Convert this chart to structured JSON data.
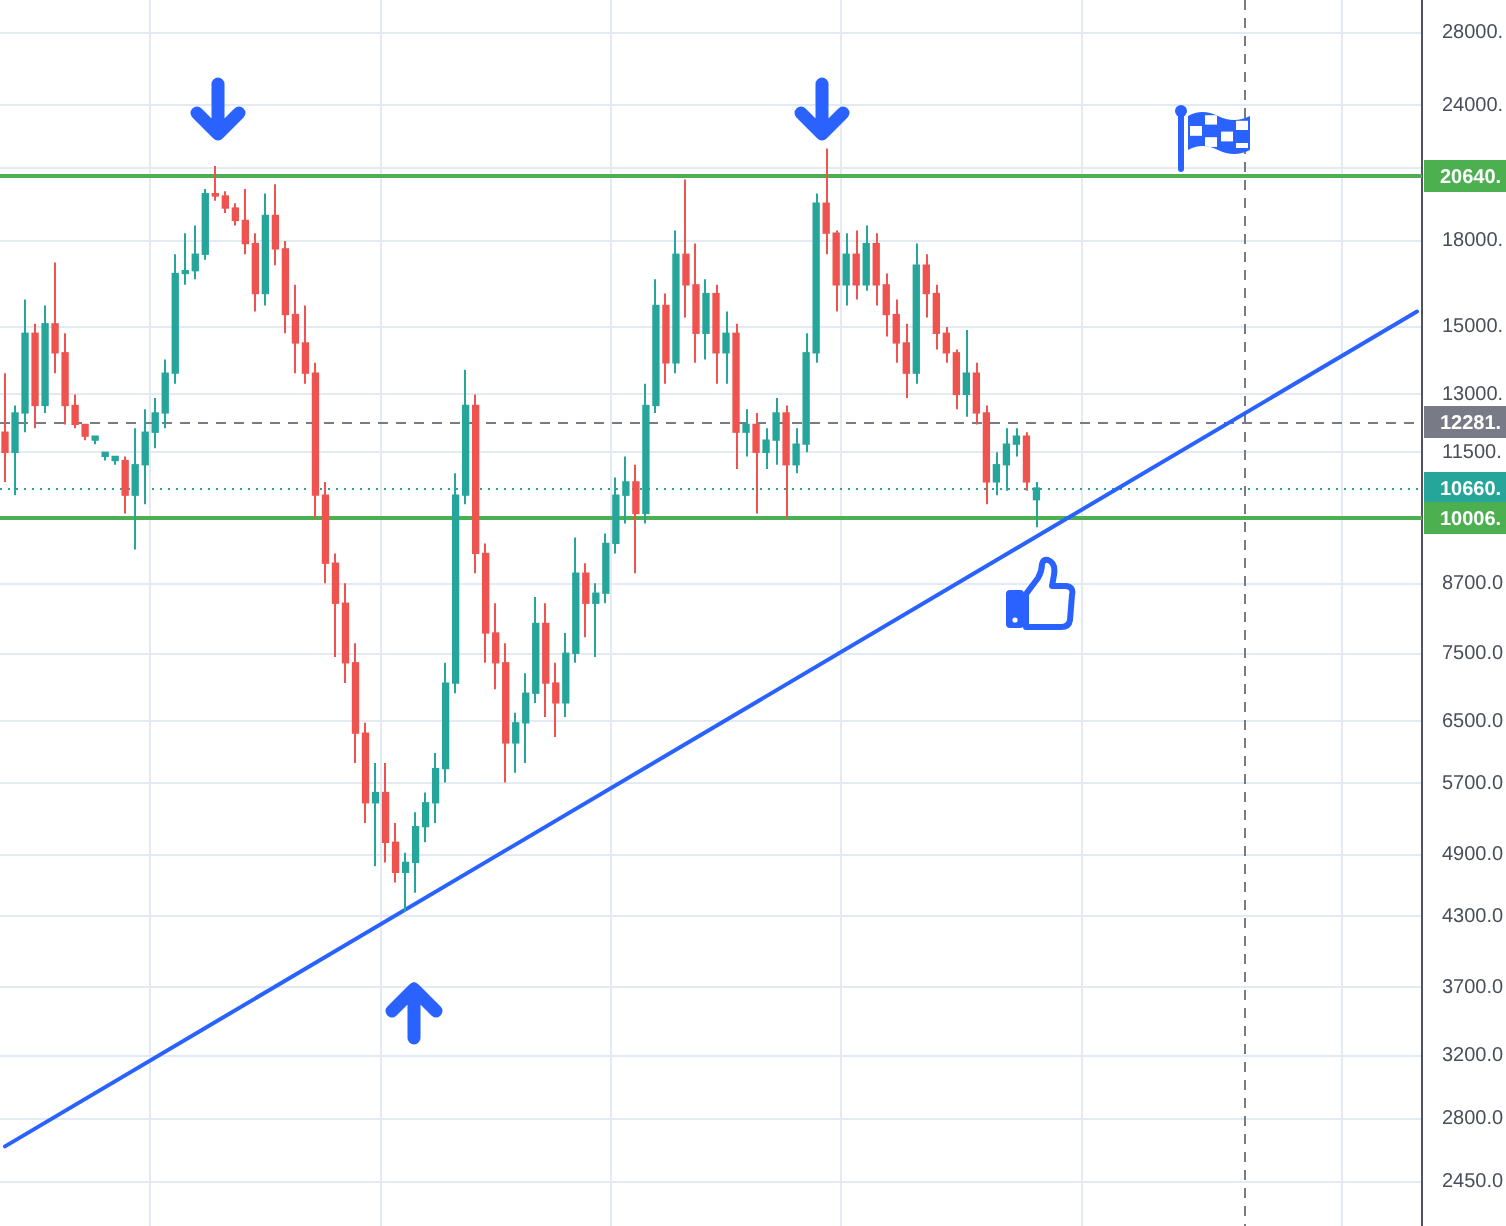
{
  "chart_data": {
    "type": "candlestick",
    "categories": [
      null,
      null,
      null,
      null,
      null,
      null,
      null,
      null,
      null,
      null,
      null,
      null,
      null,
      null,
      null,
      null,
      null,
      null,
      null,
      null,
      null,
      null,
      null,
      null,
      null,
      null,
      null,
      null,
      null,
      null,
      null,
      null,
      null,
      null,
      null,
      null,
      null,
      null,
      null,
      null,
      null,
      null,
      null,
      null,
      null,
      null,
      null,
      null,
      null,
      null,
      null,
      null,
      null,
      null,
      null,
      null,
      null,
      null,
      null,
      null,
      null,
      null,
      null,
      null,
      null,
      null,
      null,
      null,
      null,
      null,
      null,
      null,
      null,
      null,
      null,
      null,
      null,
      null,
      null,
      null,
      null,
      null,
      null,
      null,
      null,
      null,
      null,
      null,
      null,
      null,
      null,
      null,
      null,
      null,
      null,
      null,
      null,
      null,
      null,
      null,
      null,
      null,
      null,
      null,
      null,
      null,
      null,
      null,
      null,
      null,
      null,
      null,
      null,
      null,
      null,
      null,
      null,
      null,
      null,
      null,
      null,
      null,
      null,
      null,
      null,
      null,
      null,
      null,
      null,
      null,
      null,
      null,
      null,
      null,
      null,
      null,
      null,
      null,
      null,
      null,
      null,
      null
    ],
    "series": [
      {
        "ohlc": [
          [
            12000,
            13600,
            10800,
            11500
          ],
          [
            11500,
            12700,
            10500,
            12500
          ],
          [
            12500,
            15900,
            12000,
            14800
          ],
          [
            14800,
            15100,
            12100,
            12700
          ],
          [
            12700,
            15700,
            12500,
            15100
          ],
          [
            15100,
            17200,
            13600,
            14200
          ],
          [
            14200,
            14800,
            12200,
            12700
          ],
          [
            12700,
            13000,
            12100,
            12200
          ],
          [
            12200,
            12200,
            11800,
            11900
          ],
          [
            11800,
            11900,
            11700,
            11900
          ],
          [
            11400,
            11500,
            11300,
            11500
          ],
          [
            11300,
            11400,
            11200,
            11400
          ],
          [
            11300,
            11400,
            10100,
            10500
          ],
          [
            10500,
            12100,
            9360,
            11200
          ],
          [
            11200,
            12600,
            10300,
            12000
          ],
          [
            12000,
            12900,
            11600,
            12500
          ],
          [
            12500,
            14000,
            12100,
            13600
          ],
          [
            13600,
            17500,
            13300,
            16800
          ],
          [
            16800,
            18300,
            16400,
            16900
          ],
          [
            16900,
            18600,
            16600,
            17500
          ],
          [
            17500,
            20100,
            17300,
            19900
          ],
          [
            19900,
            21100,
            19600,
            19800
          ],
          [
            19800,
            20000,
            19100,
            19300
          ],
          [
            19300,
            19500,
            18600,
            18800
          ],
          [
            18800,
            20100,
            17500,
            17900
          ],
          [
            17900,
            18300,
            15500,
            16100
          ],
          [
            16100,
            19900,
            15700,
            19000
          ],
          [
            19000,
            20300,
            17100,
            17700
          ],
          [
            17700,
            18000,
            14800,
            15400
          ],
          [
            15400,
            16400,
            13600,
            14500
          ],
          [
            14500,
            15700,
            13300,
            13600
          ],
          [
            13600,
            13900,
            10000,
            10500
          ],
          [
            10500,
            10800,
            8710,
            9090
          ],
          [
            9090,
            9280,
            7450,
            8350
          ],
          [
            8350,
            8710,
            7050,
            7360
          ],
          [
            7360,
            7670,
            5950,
            6340
          ],
          [
            6340,
            6480,
            5240,
            5470
          ],
          [
            5470,
            5950,
            4780,
            5590
          ],
          [
            5590,
            5950,
            4820,
            5030
          ],
          [
            5030,
            5240,
            4620,
            4720
          ],
          [
            4720,
            4920,
            4340,
            4820
          ],
          [
            4820,
            5360,
            4520,
            5200
          ],
          [
            5200,
            5590,
            5030,
            5470
          ],
          [
            5470,
            6080,
            5240,
            5880
          ],
          [
            5880,
            7360,
            5710,
            7050
          ],
          [
            7050,
            11000,
            6900,
            10500
          ],
          [
            10500,
            13700,
            10300,
            12700
          ],
          [
            12700,
            13000,
            8900,
            9280
          ],
          [
            9280,
            9480,
            7360,
            7840
          ],
          [
            7840,
            8350,
            6960,
            7360
          ],
          [
            7360,
            7670,
            5710,
            6210
          ],
          [
            6210,
            6620,
            5830,
            6480
          ],
          [
            6480,
            7200,
            5950,
            6900
          ],
          [
            6900,
            8460,
            6760,
            8000
          ],
          [
            8000,
            8350,
            6560,
            7050
          ],
          [
            7050,
            7360,
            6290,
            6760
          ],
          [
            6760,
            7840,
            6560,
            7510
          ],
          [
            7510,
            9600,
            7360,
            8900
          ],
          [
            8900,
            9090,
            7770,
            8350
          ],
          [
            8350,
            8710,
            7450,
            8530
          ],
          [
            8530,
            9680,
            8350,
            9480
          ],
          [
            9480,
            10900,
            9280,
            10500
          ],
          [
            10500,
            11400,
            9890,
            10800
          ],
          [
            10800,
            11200,
            8900,
            10100
          ],
          [
            10100,
            13300,
            9890,
            12700
          ],
          [
            12700,
            16600,
            12500,
            15700
          ],
          [
            15700,
            16100,
            13300,
            13900
          ],
          [
            13900,
            18400,
            13600,
            17500
          ],
          [
            17500,
            20500,
            15300,
            16400
          ],
          [
            16400,
            17900,
            13900,
            14800
          ],
          [
            14800,
            16600,
            14000,
            16100
          ],
          [
            16100,
            16400,
            13300,
            14200
          ],
          [
            14200,
            15500,
            13300,
            14800
          ],
          [
            14800,
            15100,
            11100,
            12000
          ],
          [
            12000,
            12600,
            11400,
            12200
          ],
          [
            12200,
            12500,
            10100,
            11500
          ],
          [
            11500,
            12100,
            11100,
            11800
          ],
          [
            11800,
            12900,
            11200,
            12500
          ],
          [
            12500,
            12700,
            10000,
            11200
          ],
          [
            11200,
            12100,
            11000,
            11700
          ],
          [
            11700,
            14800,
            11500,
            14200
          ],
          [
            14200,
            19900,
            13900,
            19500
          ],
          [
            19500,
            21900,
            17500,
            18300
          ],
          [
            18300,
            18400,
            15500,
            16400
          ],
          [
            16400,
            18300,
            15700,
            17500
          ],
          [
            17500,
            18400,
            15900,
            16400
          ],
          [
            16400,
            18600,
            16200,
            17900
          ],
          [
            17900,
            18300,
            15700,
            16400
          ],
          [
            16400,
            16800,
            14700,
            15400
          ],
          [
            15400,
            15900,
            13900,
            14500
          ],
          [
            14500,
            15100,
            12900,
            13600
          ],
          [
            13600,
            17900,
            13300,
            17100
          ],
          [
            17100,
            17500,
            15300,
            16100
          ],
          [
            16100,
            16400,
            14300,
            14800
          ],
          [
            14800,
            15000,
            13900,
            14200
          ],
          [
            14200,
            14300,
            12600,
            13000
          ],
          [
            13000,
            14900,
            12400,
            13600
          ],
          [
            13600,
            13900,
            12200,
            12500
          ],
          [
            12500,
            12700,
            10300,
            10800
          ],
          [
            10800,
            11500,
            10500,
            11200
          ],
          [
            11200,
            12100,
            10600,
            11700
          ],
          [
            11700,
            12100,
            11400,
            11900
          ],
          [
            11900,
            12000,
            10600,
            10800
          ],
          [
            10400,
            10800,
            9810,
            10660
          ],
          null,
          null,
          null,
          null,
          null,
          null,
          null,
          null,
          null,
          null,
          null,
          null,
          null,
          null,
          null,
          null,
          null,
          null,
          null,
          null,
          null,
          null,
          null,
          null,
          null,
          null,
          null,
          null,
          null,
          null,
          null,
          null,
          null,
          null,
          null,
          null,
          null,
          null
        ],
        "colors": [
          "#ef5350",
          "#26a69a",
          "#26a69a",
          "#ef5350",
          "#26a69a",
          "#ef5350",
          "#ef5350",
          "#ef5350",
          "#ef5350",
          "#26a69a",
          "#26a69a",
          "#26a69a",
          "#ef5350",
          "#26a69a",
          "#26a69a",
          "#26a69a",
          "#26a69a",
          "#26a69a",
          "#26a69a",
          "#26a69a",
          "#26a69a",
          "#ef5350",
          "#ef5350",
          "#ef5350",
          "#ef5350",
          "#ef5350",
          "#26a69a",
          "#ef5350",
          "#ef5350",
          "#ef5350",
          "#ef5350",
          "#ef5350",
          "#ef5350",
          "#ef5350",
          "#ef5350",
          "#ef5350",
          "#ef5350",
          "#26a69a",
          "#ef5350",
          "#ef5350",
          "#26a69a",
          "#26a69a",
          "#26a69a",
          "#26a69a",
          "#26a69a",
          "#26a69a",
          "#26a69a",
          "#ef5350",
          "#ef5350",
          "#ef5350",
          "#ef5350",
          "#26a69a",
          "#26a69a",
          "#26a69a",
          "#ef5350",
          "#ef5350",
          "#26a69a",
          "#26a69a",
          "#ef5350",
          "#26a69a",
          "#26a69a",
          "#26a69a",
          "#26a69a",
          "#ef5350",
          "#26a69a",
          "#26a69a",
          "#ef5350",
          "#26a69a",
          "#ef5350",
          "#ef5350",
          "#26a69a",
          "#ef5350",
          "#26a69a",
          "#ef5350",
          "#26a69a",
          "#ef5350",
          "#26a69a",
          "#26a69a",
          "#ef5350",
          "#26a69a",
          "#26a69a",
          "#26a69a",
          "#ef5350",
          "#ef5350",
          "#26a69a",
          "#ef5350",
          "#26a69a",
          "#ef5350",
          "#ef5350",
          "#ef5350",
          "#ef5350",
          "#26a69a",
          "#ef5350",
          "#ef5350",
          "#ef5350",
          "#ef5350",
          "#26a69a",
          "#ef5350",
          "#ef5350",
          "#26a69a",
          "#26a69a",
          "#26a69a",
          "#ef5350",
          "#26a69a",
          null,
          null,
          null,
          null,
          null,
          null,
          null,
          null,
          null,
          null,
          null,
          null,
          null,
          null,
          null,
          null,
          null,
          null,
          null,
          null,
          null,
          null,
          null,
          null,
          null,
          null,
          null,
          null,
          null,
          null,
          null,
          null,
          null,
          null,
          null,
          null,
          null,
          null
        ]
      },
      {
        "type": "line",
        "color": "#2962ff",
        "values": [
          2640,
          null,
          null,
          null,
          null,
          null,
          null,
          null,
          null,
          null,
          null,
          null,
          null,
          null,
          null,
          null,
          null,
          null,
          null,
          null,
          null,
          null,
          null,
          null,
          null,
          null,
          null,
          null,
          null,
          null,
          null,
          null,
          null,
          null,
          null,
          null,
          null,
          null,
          null,
          null,
          null,
          null,
          null,
          null,
          null,
          null,
          null,
          null,
          null,
          null,
          null,
          null,
          null,
          null,
          null,
          null,
          null,
          null,
          null,
          null,
          null,
          null,
          null,
          null,
          null,
          null,
          null,
          null,
          null,
          null,
          null,
          null,
          null,
          null,
          null,
          null,
          null,
          null,
          null,
          null,
          null,
          null,
          null,
          null,
          null,
          null,
          null,
          null,
          null,
          null,
          null,
          null,
          null,
          null,
          null,
          null,
          null,
          null,
          null,
          null,
          null,
          null,
          null,
          null,
          null,
          null,
          null,
          null,
          null,
          null,
          null,
          null,
          null,
          null,
          null,
          null,
          null,
          null,
          null,
          null,
          null,
          null,
          null,
          null,
          null,
          null,
          null,
          null,
          null,
          null,
          null,
          null,
          null,
          null,
          null,
          null,
          null,
          null,
          null,
          null,
          null,
          15500
        ]
      }
    ],
    "ylim": [
      2230,
      30000
    ],
    "yticks": [
      {
        "value": 2450,
        "label": "2450.0"
      },
      {
        "value": 2800,
        "label": "2800.0"
      },
      {
        "value": 3200,
        "label": "3200.0"
      },
      {
        "value": 3700,
        "label": "3700.0"
      },
      {
        "value": 4300,
        "label": "4300.0"
      },
      {
        "value": 4900,
        "label": "4900.0"
      },
      {
        "value": 5700,
        "label": "5700.0"
      },
      {
        "value": 6500,
        "label": "6500.0"
      },
      {
        "value": 7500,
        "label": "7500.0"
      },
      {
        "value": 8700,
        "label": "8700.0"
      },
      {
        "value": 10000,
        "label": null
      },
      {
        "value": 11500,
        "label": "11500."
      },
      {
        "value": 13000,
        "label": "13000."
      },
      {
        "value": 15000,
        "label": "15000."
      },
      {
        "value": 18000,
        "label": "18000."
      },
      {
        "value": 21000,
        "label": null
      },
      {
        "value": 24000,
        "label": "24000."
      },
      {
        "value": 28000,
        "label": "28000."
      }
    ],
    "log": "y",
    "grid": true,
    "tick_labels": "y",
    "ref_lines": [
      {
        "axis": "y",
        "value": 20640,
        "label": "20640.",
        "color": "#4caf50",
        "line_style": "solid"
      },
      {
        "axis": "y",
        "value": 12281,
        "label": "12281.",
        "color": "#787b86",
        "line_style": "dashed"
      },
      {
        "axis": "y",
        "value": 10660,
        "label": "10660.",
        "color": "#26a69a",
        "line_style": "dotted"
      },
      {
        "axis": "y",
        "value": 10006,
        "label": "10006.",
        "color": "#4caf50",
        "line_style": "solid"
      }
    ]
  }
}
